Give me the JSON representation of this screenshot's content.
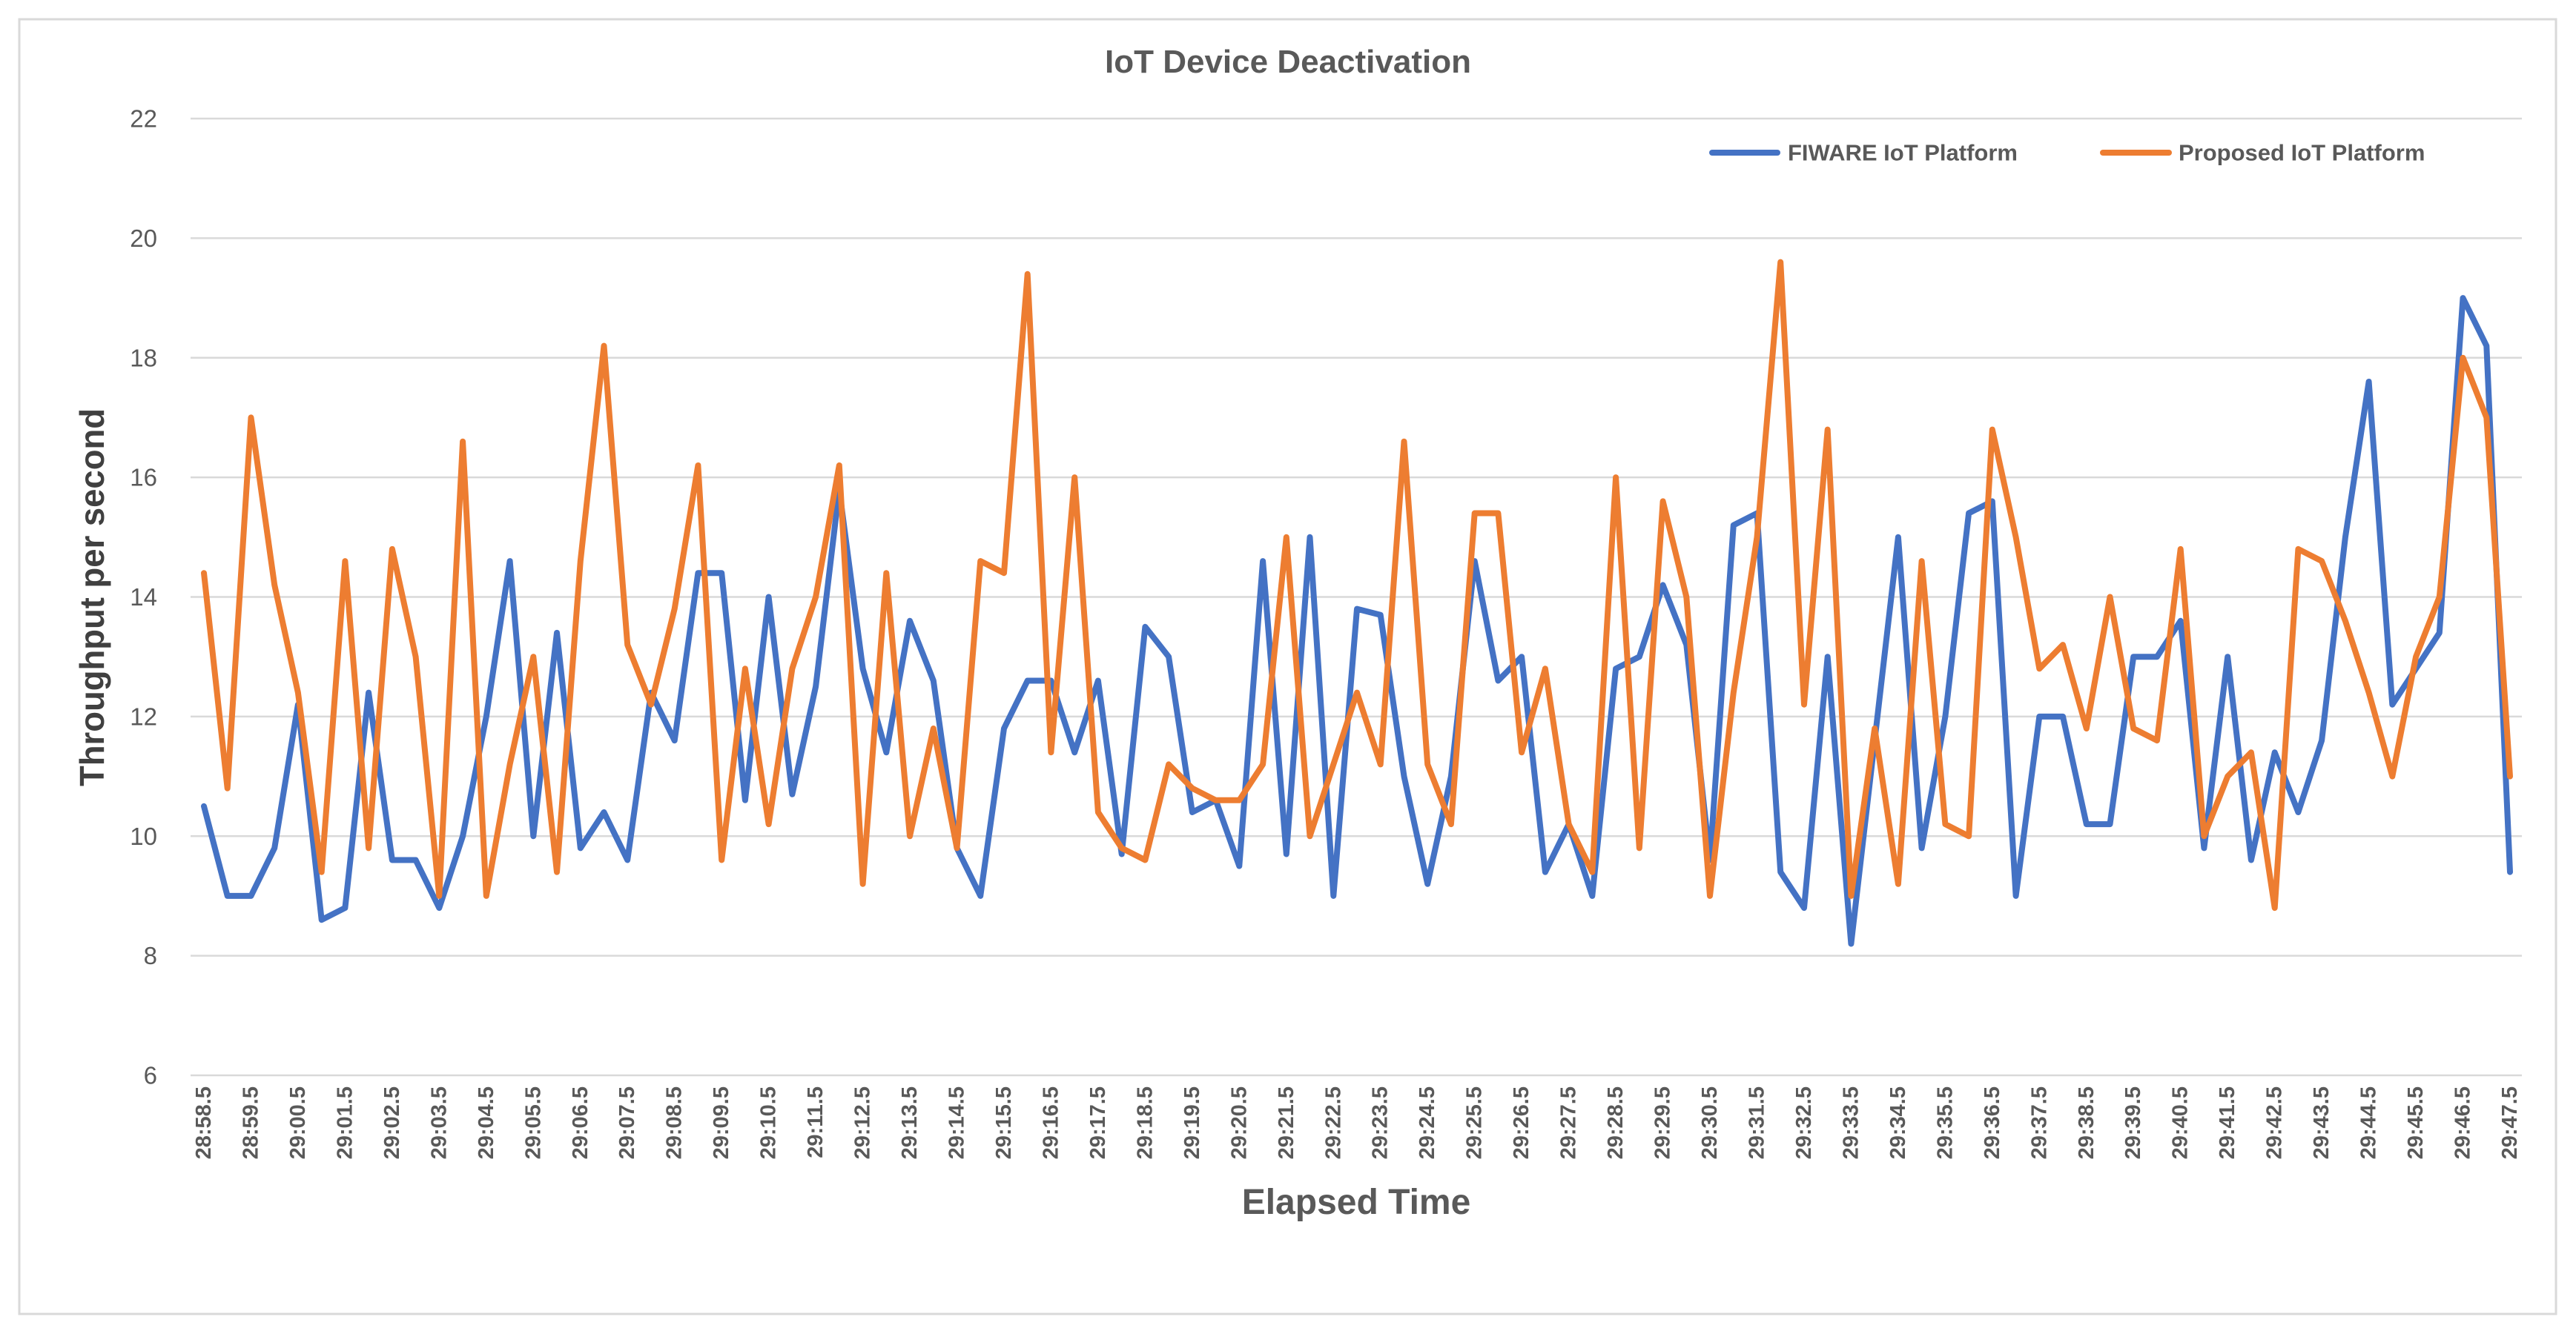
{
  "chart_data": {
    "type": "line",
    "title": "IoT Device Deactivation",
    "xlabel": "Elapsed Time",
    "ylabel": "Throughput per second",
    "ylim": [
      6,
      22
    ],
    "y_ticks": [
      6,
      8,
      10,
      12,
      14,
      16,
      18,
      20,
      22
    ],
    "grid": true,
    "legend_position": "top-right",
    "points_per_tick_label": 2,
    "x_tick_labels": [
      "28:58.5",
      "28:59.5",
      "29:00.5",
      "29:01.5",
      "29:02.5",
      "29:03.5",
      "29:04.5",
      "29:05.5",
      "29:06.5",
      "29:07.5",
      "29:08.5",
      "29:09.5",
      "29:10.5",
      "29:11.5",
      "29:12.5",
      "29:13.5",
      "29:14.5",
      "29:15.5",
      "29:16.5",
      "29:17.5",
      "29:18.5",
      "29:19.5",
      "29:20.5",
      "29:21.5",
      "29:22.5",
      "29:23.5",
      "29:24.5",
      "29:25.5",
      "29:26.5",
      "29:27.5",
      "29:28.5",
      "29:29.5",
      "29:30.5",
      "29:31.5",
      "29:32.5",
      "29:33.5",
      "29:34.5",
      "29:35.5",
      "29:36.5",
      "29:37.5",
      "29:38.5",
      "29:39.5",
      "29:40.5",
      "29:41.5",
      "29:42.5",
      "29:43.5",
      "29:44.5",
      "29:45.5",
      "29:46.5",
      "29:47.5"
    ],
    "series": [
      {
        "name": "FIWARE IoT Platform",
        "color": "#4472C4",
        "values": [
          10.5,
          9.0,
          9.0,
          9.8,
          12.2,
          8.6,
          8.8,
          12.4,
          9.6,
          9.6,
          8.8,
          10.0,
          12.0,
          14.6,
          10.0,
          13.4,
          9.8,
          10.4,
          9.6,
          12.4,
          11.6,
          14.4,
          14.4,
          10.6,
          14.0,
          10.7,
          12.5,
          15.8,
          12.8,
          11.4,
          13.6,
          12.6,
          9.8,
          9.0,
          11.8,
          12.6,
          12.6,
          11.4,
          12.6,
          9.7,
          13.5,
          13.0,
          10.4,
          10.6,
          9.5,
          14.6,
          9.7,
          15.0,
          9.0,
          13.8,
          13.7,
          11.0,
          9.2,
          11.0,
          14.6,
          12.6,
          13.0,
          9.4,
          10.2,
          9.0,
          12.8,
          13.0,
          14.2,
          13.2,
          9.6,
          15.2,
          15.4,
          9.4,
          8.8,
          13.0,
          8.2,
          11.6,
          15.0,
          9.8,
          12.0,
          15.4,
          15.6,
          9.0,
          12.0,
          12.0,
          10.2,
          10.2,
          13.0,
          13.0,
          13.6,
          9.8,
          13.0,
          9.6,
          11.4,
          10.4,
          11.6,
          15.0,
          17.6,
          12.2,
          12.8,
          13.4,
          19.0,
          18.2,
          9.4
        ]
      },
      {
        "name": "Proposed IoT Platform",
        "color": "#ED7D31",
        "values": [
          14.4,
          10.8,
          17.0,
          14.2,
          12.4,
          9.4,
          14.6,
          9.8,
          14.8,
          13.0,
          9.0,
          16.6,
          9.0,
          11.2,
          13.0,
          9.4,
          14.6,
          18.2,
          13.2,
          12.2,
          13.8,
          16.2,
          9.6,
          12.8,
          10.2,
          12.8,
          14.0,
          16.2,
          9.2,
          14.4,
          10.0,
          11.8,
          9.8,
          14.6,
          14.4,
          19.4,
          11.4,
          16.0,
          10.4,
          9.8,
          9.6,
          11.2,
          10.8,
          10.6,
          10.6,
          11.2,
          15.0,
          10.0,
          11.2,
          12.4,
          11.2,
          16.6,
          11.2,
          10.2,
          15.4,
          15.4,
          11.4,
          12.8,
          10.2,
          9.4,
          16.0,
          9.8,
          15.6,
          14.0,
          9.0,
          12.4,
          15.0,
          19.6,
          12.2,
          16.8,
          9.0,
          11.8,
          9.2,
          14.6,
          10.2,
          10.0,
          16.8,
          15.0,
          12.8,
          13.2,
          11.8,
          14.0,
          11.8,
          11.6,
          14.8,
          10.0,
          11.0,
          11.4,
          8.8,
          14.8,
          14.6,
          13.6,
          12.4,
          11.0,
          13.0,
          14.0,
          18.0,
          17.0,
          11.0
        ]
      }
    ]
  }
}
